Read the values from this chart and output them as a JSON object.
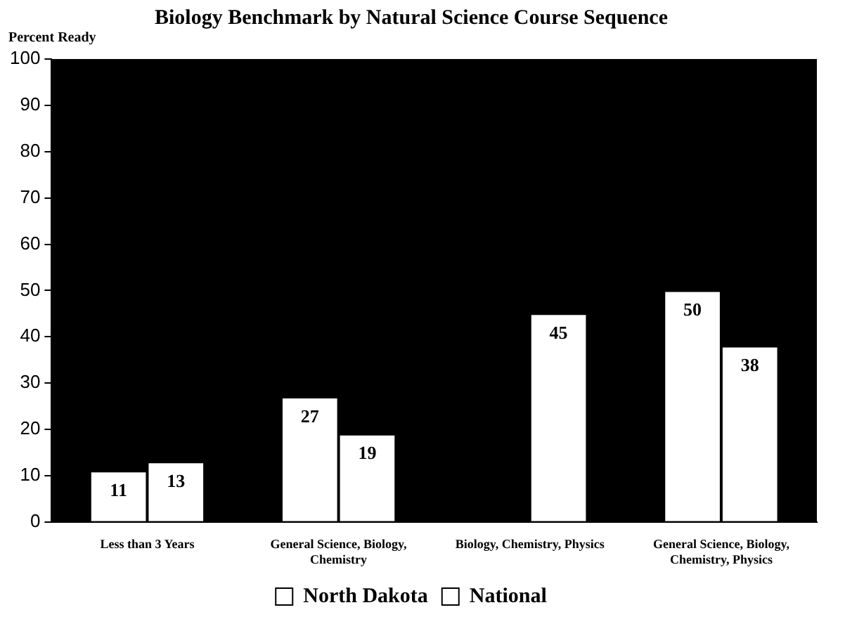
{
  "chart_data": {
    "type": "bar",
    "title": "Biology Benchmark by Natural Science Course Sequence",
    "ylabel": "Percent Ready",
    "categories": [
      "Less than 3 Years",
      "General Science, Biology, Chemistry",
      "Biology, Chemistry, Physics",
      "General Science, Biology, Chemistry, Physics"
    ],
    "series": [
      {
        "name": "North Dakota",
        "color": "#ffffff",
        "values": [
          11,
          27,
          null,
          50
        ]
      },
      {
        "name": "National",
        "color": "#ffffff",
        "values": [
          13,
          19,
          45,
          38
        ]
      }
    ],
    "ylim": [
      0,
      100
    ],
    "yticks": [
      0,
      10,
      20,
      30,
      40,
      50,
      60,
      70,
      80,
      90,
      100
    ],
    "grid": false,
    "legend": "bottom",
    "data_labels": true
  }
}
